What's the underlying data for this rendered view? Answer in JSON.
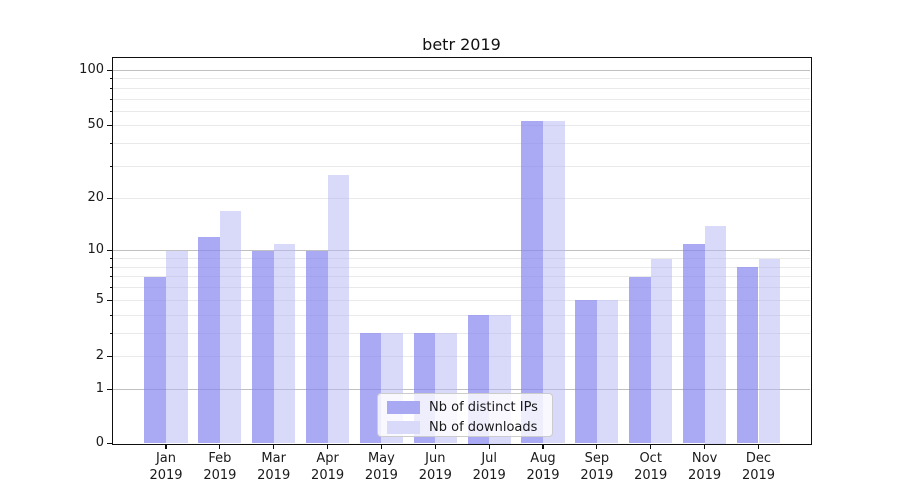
{
  "chart_data": {
    "type": "bar",
    "title": "betr 2019",
    "categories": [
      "Jan",
      "Feb",
      "Mar",
      "Apr",
      "May",
      "Jun",
      "Jul",
      "Aug",
      "Sep",
      "Oct",
      "Nov",
      "Dec"
    ],
    "category_year": "2019",
    "series": [
      {
        "name": "Nb of distinct IPs",
        "color": "#a9a9f3",
        "values": [
          7,
          12,
          10,
          10,
          3,
          3,
          4,
          53,
          5,
          7,
          11,
          8
        ]
      },
      {
        "name": "Nb of downloads",
        "color": "#d9d9fa",
        "values": [
          10,
          17,
          11,
          27,
          3,
          3,
          4,
          53,
          5,
          9,
          14,
          9
        ]
      }
    ],
    "xlabel": "",
    "ylabel": "",
    "scale": "log1p",
    "ylim": [
      0,
      117
    ],
    "y_ticks": [
      0,
      1,
      2,
      5,
      10,
      20,
      50,
      100
    ],
    "y_major_gridlines": [
      1,
      10,
      100
    ],
    "y_minor_gridlines": [
      2,
      3,
      4,
      5,
      6,
      7,
      8,
      9,
      20,
      30,
      40,
      50,
      60,
      70,
      80,
      90
    ],
    "grid": true,
    "legend_position": "lower center"
  },
  "style": {
    "bar_fill_distinct_ips": "rgba(132,132,239,0.7)",
    "bar_fill_downloads": "rgba(179,179,245,0.5)",
    "major_grid_color": "#c0c0c0",
    "minor_grid_color": "#e9e9e9",
    "spine_color": "#0f0f0f",
    "tick_color": "#111111",
    "text_color": "#1a1a1a",
    "background": "#ffffff"
  }
}
